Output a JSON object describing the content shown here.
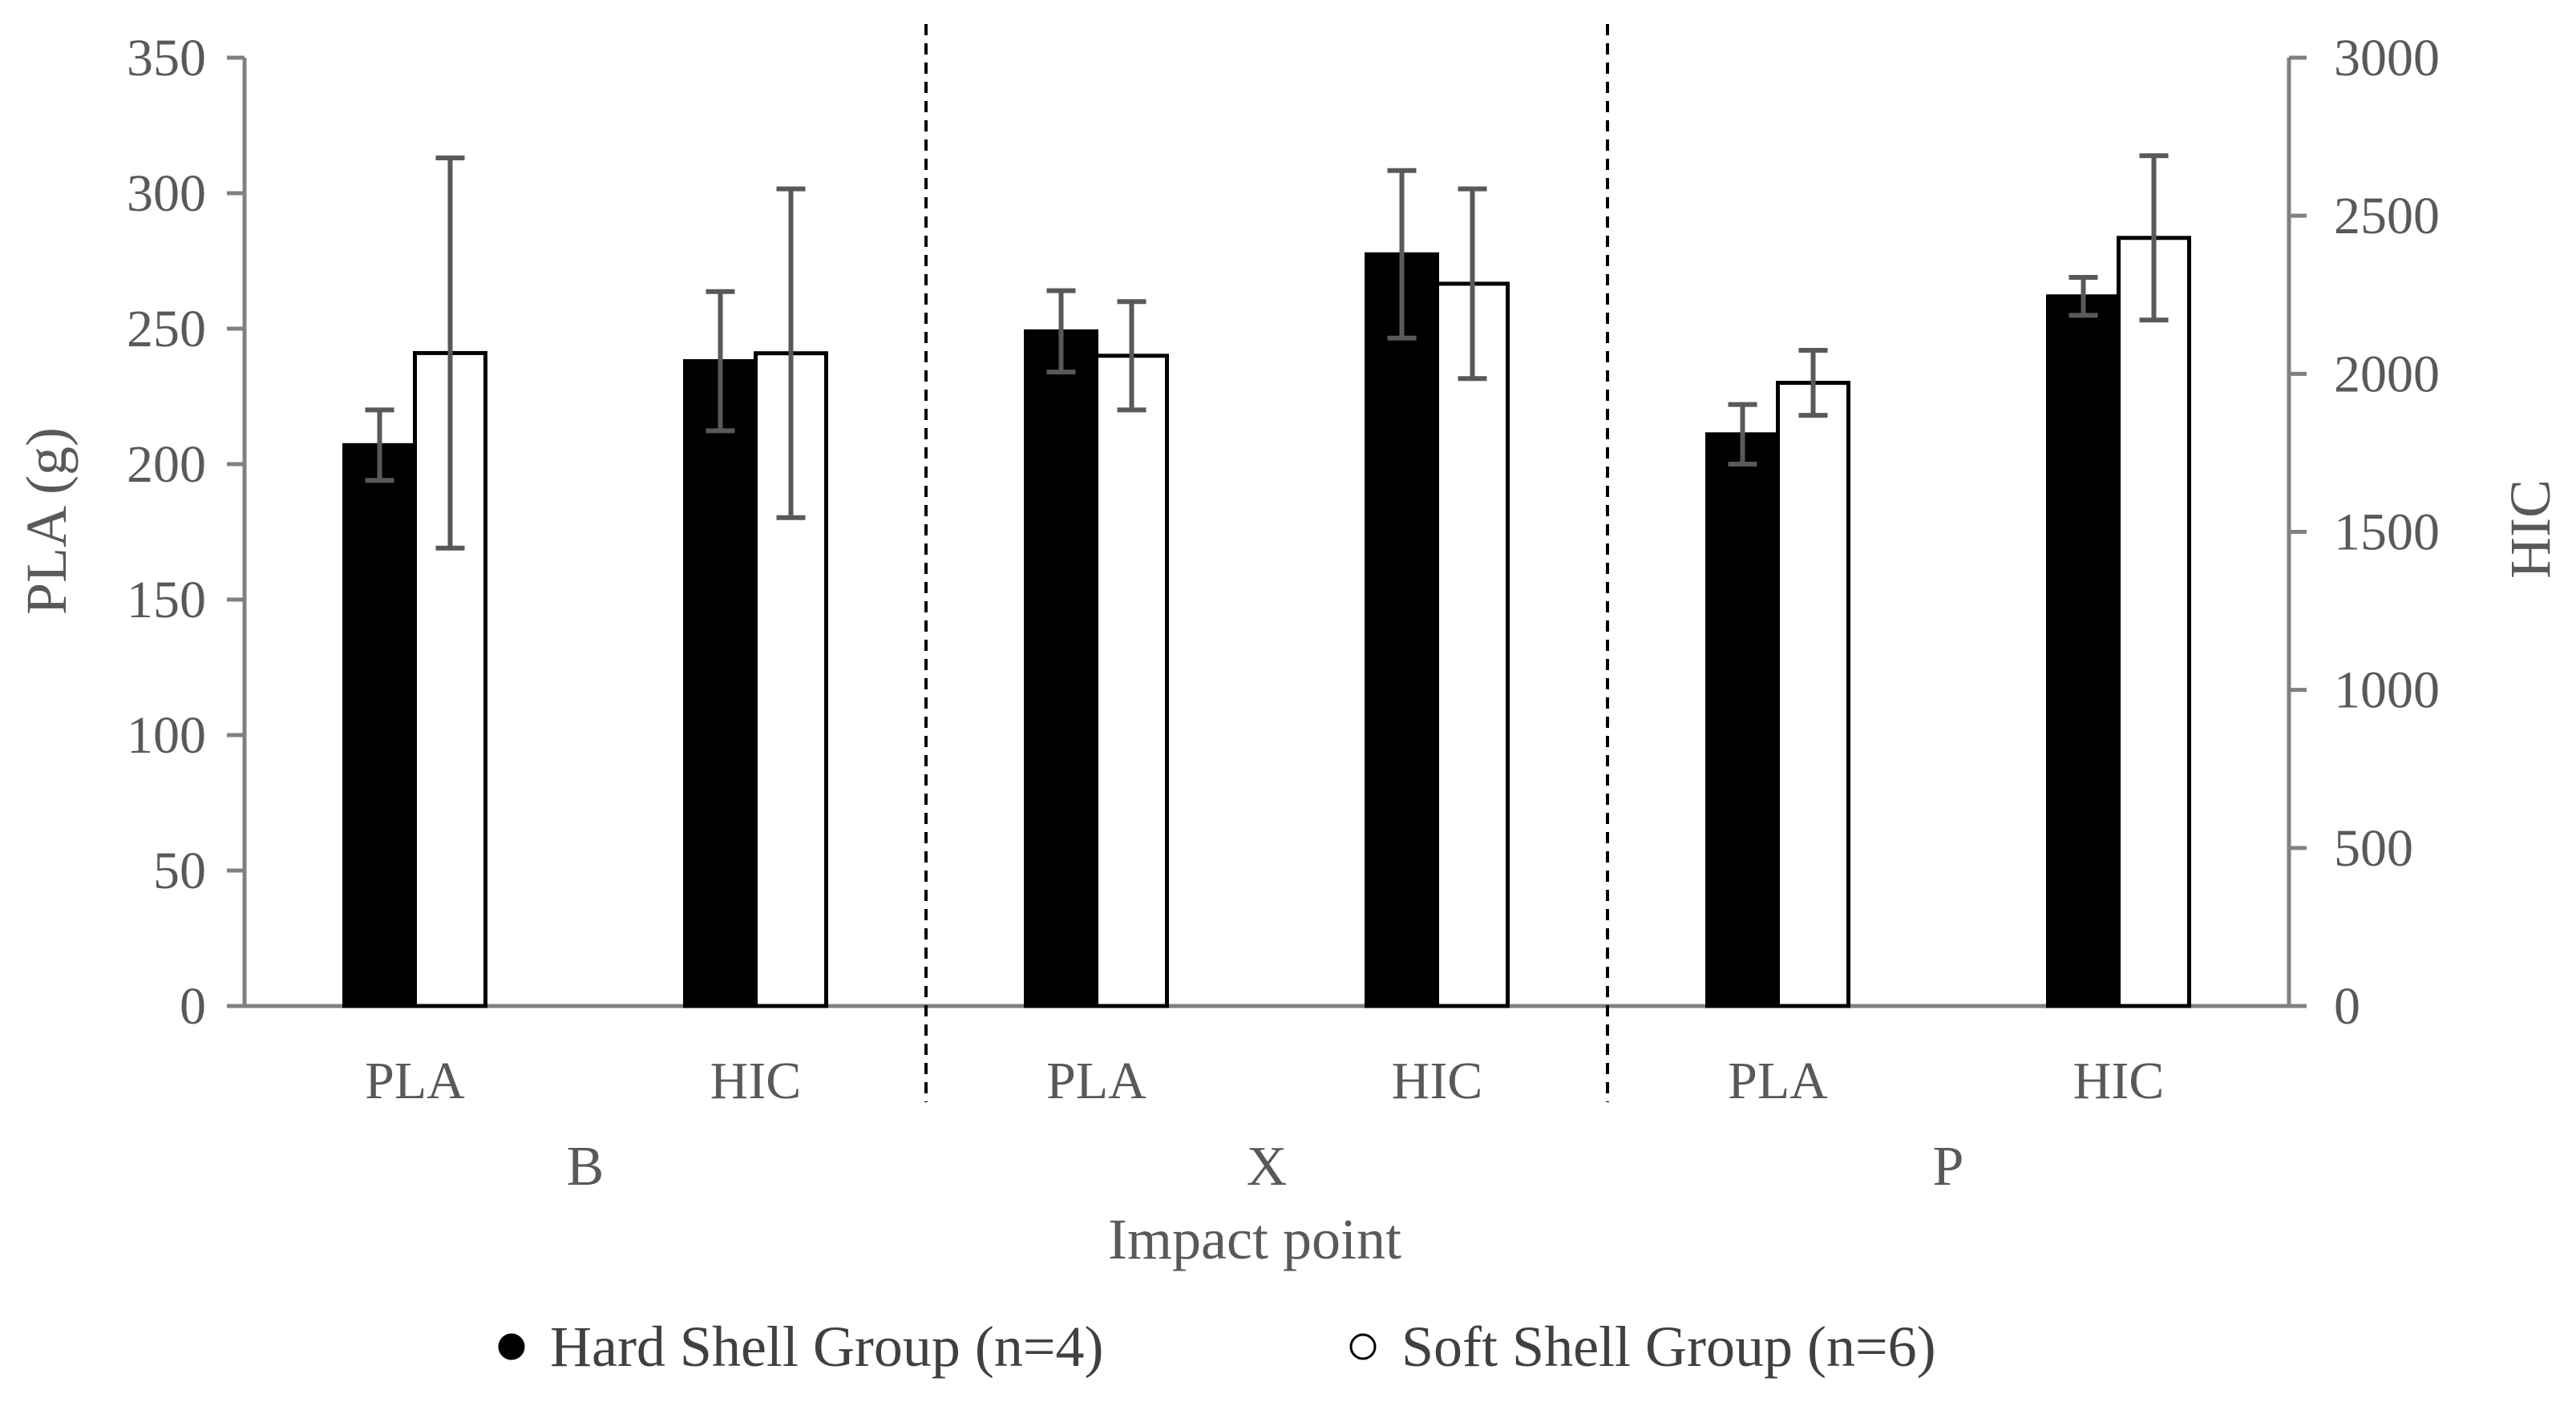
{
  "chart_data": {
    "type": "bar",
    "xlabel": "Impact point",
    "ylabel": "PLA (g)",
    "y2label": "HIC",
    "ylim": [
      0,
      350
    ],
    "y2lim": [
      0,
      3000
    ],
    "yticks": [
      "0",
      "50",
      "100",
      "150",
      "200",
      "250",
      "300",
      "350"
    ],
    "y2ticks": [
      "0",
      "500",
      "1000",
      "1500",
      "2000",
      "2500",
      "3000"
    ],
    "groups": [
      "B",
      "X",
      "P"
    ],
    "categories": [
      "PLA",
      "HIC",
      "PLA",
      "HIC",
      "PLA",
      "HIC"
    ],
    "category_group": [
      0,
      0,
      1,
      1,
      2,
      2
    ],
    "category_axis": [
      "left",
      "right",
      "left",
      "right",
      "left",
      "right"
    ],
    "series": [
      {
        "name": "Hard Shell Group (n=4)",
        "color": "#000000",
        "values": [
          207,
          2040,
          249,
          2378,
          211,
          2245
        ],
        "error": [
          13,
          220,
          15,
          265,
          11,
          60
        ]
      },
      {
        "name": "Soft Shell Group (n=6)",
        "color": "#ffffff",
        "values": [
          241,
          2065,
          240,
          2285,
          230,
          2430
        ],
        "error": [
          72,
          520,
          20,
          300,
          12,
          260
        ]
      }
    ],
    "legend": "bottom"
  }
}
